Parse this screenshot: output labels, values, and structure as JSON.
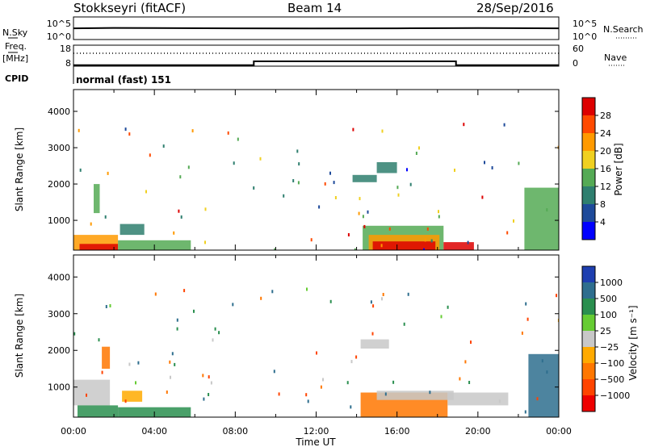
{
  "header": {
    "radar_title": "Stokkseyri (fitACF)",
    "beam_label": "Beam 14",
    "date_label": "28/Sep/2016"
  },
  "panel_labels": {
    "nsky": "N.Sky",
    "nsearch": "N.Search",
    "freq_line1": "Freq.",
    "freq_line2": "[MHz]",
    "nave": "Nave",
    "cpid": "CPID",
    "cpid_text": "normal (fast) 151"
  },
  "noise_axis": {
    "ticks": [
      "10^5",
      "10^0"
    ]
  },
  "freq_axis": {
    "left_ticks": [
      "18",
      "8"
    ],
    "right_ticks": [
      "60",
      "0"
    ]
  },
  "range_axis": {
    "label": "Slant Range [km]",
    "ticks": [
      "4000",
      "3000",
      "2000",
      "1000"
    ]
  },
  "time_axis": {
    "label": "Time UT",
    "ticks": [
      "00:00",
      "04:00",
      "08:00",
      "12:00",
      "16:00",
      "20:00",
      "00:00"
    ]
  },
  "power_scale": {
    "label": "Power [dB]",
    "ticks": [
      "28",
      "24",
      "20",
      "16",
      "12",
      "8",
      "4"
    ],
    "colors": [
      "#dd0000",
      "#ff4a00",
      "#ff9a00",
      "#f0d020",
      "#55aa55",
      "#2f7f6f",
      "#1e4a9a",
      "#0000ff"
    ]
  },
  "velocity_scale": {
    "label": "Velocity [m s⁻¹]",
    "ticks": [
      "1000",
      "500",
      "100",
      "25",
      "−25",
      "−100",
      "−500",
      "−1000"
    ],
    "colors": [
      "#1e3fb0",
      "#2e6e8e",
      "#2a8f4f",
      "#66cc33",
      "#c8c8c8",
      "#ffaa00",
      "#ff7700",
      "#ff4400",
      "#ee0000"
    ]
  },
  "chart_data": [
    {
      "type": "line",
      "panel": "noise",
      "ylabel": "N.Sky / N.Search",
      "series": [
        {
          "name": "N.Sky",
          "style": "solid",
          "x": [
            "00:00",
            "02:00",
            "04:00",
            "08:00",
            "12:00",
            "16:00",
            "20:00",
            "24:00"
          ],
          "values": [
            300,
            400,
            350,
            300,
            280,
            300,
            350,
            300
          ]
        }
      ]
    },
    {
      "type": "line",
      "panel": "frequency",
      "series": [
        {
          "name": "Freq.",
          "style": "solid",
          "x": [
            "00:00",
            "08:55",
            "08:55",
            "18:55",
            "18:55",
            "24:00"
          ],
          "values": [
            8.5,
            8.5,
            10.5,
            10.5,
            8.5,
            8.5
          ]
        },
        {
          "name": "Nave",
          "style": "dotted",
          "x": [
            "00:00",
            "24:00"
          ],
          "values": [
            40,
            40
          ]
        }
      ]
    },
    {
      "type": "heatmap",
      "panel": "power",
      "xlabel": "Time UT",
      "ylabel": "Slant Range [km]",
      "xlim": [
        0,
        24
      ],
      "ylim": [
        180,
        4600
      ],
      "colorbar": "Power [dB]",
      "regions": [
        {
          "t0": 0.0,
          "t1": 2.2,
          "r0": 180,
          "r1": 600,
          "level": 20
        },
        {
          "t0": 0.3,
          "t1": 2.2,
          "r0": 180,
          "r1": 350,
          "level": 28
        },
        {
          "t0": 1.0,
          "t1": 1.3,
          "r0": 1200,
          "r1": 2000,
          "level": 10
        },
        {
          "t0": 2.2,
          "t1": 5.8,
          "r0": 180,
          "r1": 450,
          "level": 12
        },
        {
          "t0": 2.3,
          "t1": 3.5,
          "r0": 600,
          "r1": 900,
          "level": 8
        },
        {
          "t0": 13.8,
          "t1": 15.0,
          "r0": 2050,
          "r1": 2250,
          "level": 8
        },
        {
          "t0": 15.0,
          "t1": 16.0,
          "r0": 2300,
          "r1": 2600,
          "level": 6
        },
        {
          "t0": 14.3,
          "t1": 18.3,
          "r0": 180,
          "r1": 850,
          "level": 12
        },
        {
          "t0": 14.6,
          "t1": 18.1,
          "r0": 180,
          "r1": 600,
          "level": 20
        },
        {
          "t0": 14.8,
          "t1": 17.9,
          "r0": 180,
          "r1": 420,
          "level": 28
        },
        {
          "t0": 18.3,
          "t1": 19.8,
          "r0": 180,
          "r1": 400,
          "level": 26
        },
        {
          "t0": 22.3,
          "t1": 24.0,
          "r0": 180,
          "r1": 1900,
          "level": 10
        }
      ]
    },
    {
      "type": "heatmap",
      "panel": "velocity",
      "xlabel": "Time UT",
      "ylabel": "Slant Range [km]",
      "xlim": [
        0,
        24
      ],
      "ylim": [
        180,
        4600
      ],
      "colorbar": "Velocity [m s⁻¹]",
      "regions": [
        {
          "t0": 0.0,
          "t1": 1.8,
          "r0": 500,
          "r1": 1200,
          "level": 0
        },
        {
          "t0": 0.2,
          "t1": 2.2,
          "r0": 180,
          "r1": 500,
          "level": 150
        },
        {
          "t0": 1.4,
          "t1": 1.8,
          "r0": 1500,
          "r1": 2100,
          "level": -300
        },
        {
          "t0": 2.2,
          "t1": 5.8,
          "r0": 180,
          "r1": 450,
          "level": 200
        },
        {
          "t0": 2.4,
          "t1": 3.4,
          "r0": 600,
          "r1": 900,
          "level": -60
        },
        {
          "t0": 14.2,
          "t1": 15.6,
          "r0": 2050,
          "r1": 2300,
          "level": 0
        },
        {
          "t0": 14.2,
          "t1": 18.5,
          "r0": 180,
          "r1": 850,
          "level": -200
        },
        {
          "t0": 15.0,
          "t1": 18.8,
          "r0": 650,
          "r1": 900,
          "level": 0
        },
        {
          "t0": 18.5,
          "t1": 21.5,
          "r0": 500,
          "r1": 850,
          "level": 0
        },
        {
          "t0": 22.5,
          "t1": 24.0,
          "r0": 180,
          "r1": 1900,
          "level": 600
        }
      ]
    }
  ]
}
